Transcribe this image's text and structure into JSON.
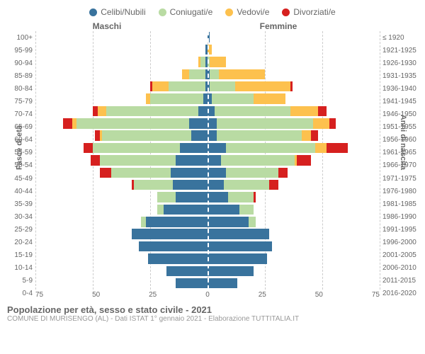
{
  "legend": [
    {
      "label": "Celibi/Nubili",
      "color": "#39739d"
    },
    {
      "label": "Coniugati/e",
      "color": "#b9dba3"
    },
    {
      "label": "Vedovi/e",
      "color": "#fdc14e"
    },
    {
      "label": "Divorziati/e",
      "color": "#d6201f"
    }
  ],
  "headers": {
    "left": "Maschi",
    "right": "Femmine",
    "yLeft": "Fasce di età",
    "yRight": "Anni di nascita"
  },
  "ageLabels": [
    "100+",
    "95-99",
    "90-94",
    "85-89",
    "80-84",
    "75-79",
    "70-74",
    "65-69",
    "60-64",
    "55-59",
    "50-54",
    "45-49",
    "40-44",
    "35-39",
    "30-34",
    "25-29",
    "20-24",
    "15-19",
    "10-14",
    "5-9",
    "0-4"
  ],
  "birthLabels": [
    "≤ 1920",
    "1921-1925",
    "1926-1930",
    "1931-1935",
    "1936-1940",
    "1941-1945",
    "1946-1950",
    "1951-1955",
    "1956-1960",
    "1961-1965",
    "1966-1970",
    "1971-1975",
    "1976-1980",
    "1981-1985",
    "1986-1990",
    "1991-1995",
    "1996-2000",
    "2001-2005",
    "2006-2010",
    "2011-2015",
    "2016-2020"
  ],
  "xTicks": [
    75,
    50,
    25,
    0,
    25,
    50,
    75
  ],
  "xMax": 75,
  "colors": {
    "celibi": "#39739d",
    "coniugati": "#b9dba3",
    "vedovi": "#fdc14e",
    "divorziati": "#d6201f",
    "grid": "#cccccc",
    "text": "#666666",
    "bg": "#ffffff"
  },
  "fontsize": {
    "tick": 10,
    "label": 11,
    "legend": 12,
    "title": 13,
    "sub": 10
  },
  "rows": [
    {
      "m": {
        "c": 0,
        "co": 0,
        "v": 0,
        "d": 0
      },
      "f": {
        "c": 1,
        "co": 0,
        "v": 0,
        "d": 0
      }
    },
    {
      "m": {
        "c": 1,
        "co": 0,
        "v": 0,
        "d": 0
      },
      "f": {
        "c": 0,
        "co": 0,
        "v": 2,
        "d": 0
      }
    },
    {
      "m": {
        "c": 1,
        "co": 2,
        "v": 1,
        "d": 0
      },
      "f": {
        "c": 0,
        "co": 1,
        "v": 7,
        "d": 0
      }
    },
    {
      "m": {
        "c": 1,
        "co": 7,
        "v": 3,
        "d": 0
      },
      "f": {
        "c": 1,
        "co": 4,
        "v": 20,
        "d": 0
      }
    },
    {
      "m": {
        "c": 1,
        "co": 16,
        "v": 7,
        "d": 1
      },
      "f": {
        "c": 1,
        "co": 11,
        "v": 24,
        "d": 1
      }
    },
    {
      "m": {
        "c": 2,
        "co": 23,
        "v": 2,
        "d": 0
      },
      "f": {
        "c": 2,
        "co": 18,
        "v": 14,
        "d": 0
      }
    },
    {
      "m": {
        "c": 4,
        "co": 40,
        "v": 4,
        "d": 2
      },
      "f": {
        "c": 3,
        "co": 33,
        "v": 12,
        "d": 4
      }
    },
    {
      "m": {
        "c": 8,
        "co": 49,
        "v": 2,
        "d": 4
      },
      "f": {
        "c": 4,
        "co": 42,
        "v": 7,
        "d": 3
      }
    },
    {
      "m": {
        "c": 7,
        "co": 39,
        "v": 1,
        "d": 2
      },
      "f": {
        "c": 4,
        "co": 37,
        "v": 4,
        "d": 3
      }
    },
    {
      "m": {
        "c": 12,
        "co": 38,
        "v": 0,
        "d": 4
      },
      "f": {
        "c": 8,
        "co": 39,
        "v": 5,
        "d": 9
      }
    },
    {
      "m": {
        "c": 14,
        "co": 33,
        "v": 0,
        "d": 4
      },
      "f": {
        "c": 6,
        "co": 32,
        "v": 1,
        "d": 6
      }
    },
    {
      "m": {
        "c": 16,
        "co": 26,
        "v": 0,
        "d": 5
      },
      "f": {
        "c": 8,
        "co": 23,
        "v": 0,
        "d": 4
      }
    },
    {
      "m": {
        "c": 15,
        "co": 17,
        "v": 0,
        "d": 1
      },
      "f": {
        "c": 7,
        "co": 20,
        "v": 0,
        "d": 4
      }
    },
    {
      "m": {
        "c": 14,
        "co": 8,
        "v": 0,
        "d": 0
      },
      "f": {
        "c": 9,
        "co": 11,
        "v": 0,
        "d": 1
      }
    },
    {
      "m": {
        "c": 19,
        "co": 3,
        "v": 0,
        "d": 0
      },
      "f": {
        "c": 14,
        "co": 6,
        "v": 0,
        "d": 0
      }
    },
    {
      "m": {
        "c": 27,
        "co": 2,
        "v": 0,
        "d": 0
      },
      "f": {
        "c": 18,
        "co": 3,
        "v": 0,
        "d": 0
      }
    },
    {
      "m": {
        "c": 33,
        "co": 0,
        "v": 0,
        "d": 0
      },
      "f": {
        "c": 27,
        "co": 0,
        "v": 0,
        "d": 0
      }
    },
    {
      "m": {
        "c": 30,
        "co": 0,
        "v": 0,
        "d": 0
      },
      "f": {
        "c": 28,
        "co": 0,
        "v": 0,
        "d": 0
      }
    },
    {
      "m": {
        "c": 26,
        "co": 0,
        "v": 0,
        "d": 0
      },
      "f": {
        "c": 26,
        "co": 0,
        "v": 0,
        "d": 0
      }
    },
    {
      "m": {
        "c": 18,
        "co": 0,
        "v": 0,
        "d": 0
      },
      "f": {
        "c": 20,
        "co": 0,
        "v": 0,
        "d": 0
      }
    },
    {
      "m": {
        "c": 14,
        "co": 0,
        "v": 0,
        "d": 0
      },
      "f": {
        "c": 13,
        "co": 0,
        "v": 0,
        "d": 0
      }
    }
  ],
  "footer": {
    "title": "Popolazione per età, sesso e stato civile - 2021",
    "sub": "COMUNE DI MURISENGO (AL) - Dati ISTAT 1° gennaio 2021 - Elaborazione TUTTITALIA.IT"
  }
}
